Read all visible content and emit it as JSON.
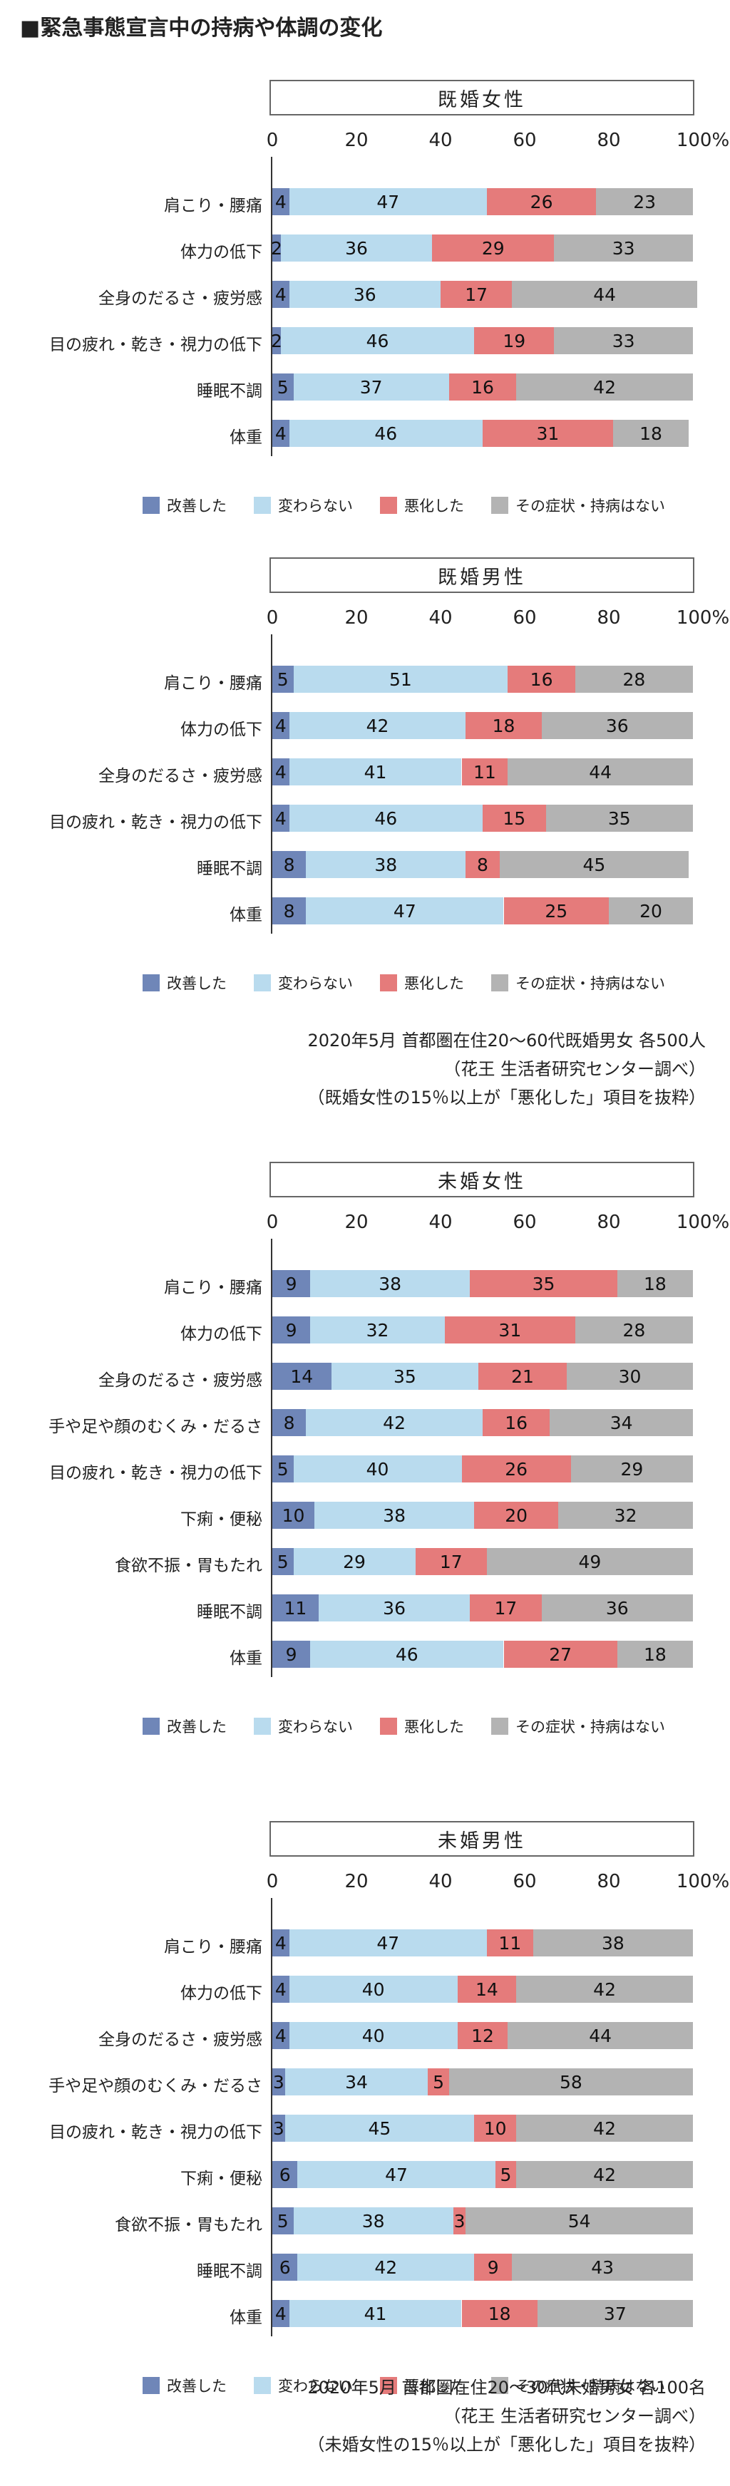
{
  "title": "■緊急事態宣言中の持病や体調の変化",
  "colors": {
    "improved": "#6f86b8",
    "unchanged": "#b9dbee",
    "worsened": "#e57b7b",
    "none": "#b3b3b3"
  },
  "legend": [
    "改善した",
    "変わらない",
    "悪化した",
    "その症状・持病はない"
  ],
  "notes": {
    "married": [
      "2020年5月 首都圏在住20〜60代既婚男女 各500人",
      "（花王 生活者研究センター調べ）",
      "（既婚女性の15％以上が「悪化した」項目を抜粋）"
    ],
    "single": [
      "2020年5月 首都圏在住20〜30代未婚男女 各100名",
      "（花王 生活者研究センター調べ）",
      "（未婚女性の15％以上が「悪化した」項目を抜粋）"
    ]
  },
  "chart_data": [
    {
      "type": "bar",
      "orientation": "horizontal",
      "stacked": true,
      "title": "既婚女性",
      "xticks": [
        "0",
        "20",
        "40",
        "60",
        "80",
        "100%"
      ],
      "xlim": [
        0,
        100
      ],
      "categories": [
        "肩こり・腰痛",
        "体力の低下",
        "全身のだるさ・疲労感",
        "目の疲れ・乾き・視力の低下",
        "睡眠不調",
        "体重"
      ],
      "series": [
        {
          "name": "改善した",
          "values": [
            4,
            2,
            4,
            2,
            5,
            4
          ]
        },
        {
          "name": "変わらない",
          "values": [
            47,
            36,
            36,
            46,
            37,
            46
          ]
        },
        {
          "name": "悪化した",
          "values": [
            26,
            29,
            17,
            19,
            16,
            31
          ]
        },
        {
          "name": "その症状・持病はない",
          "values": [
            23,
            33,
            44,
            33,
            42,
            18
          ]
        }
      ]
    },
    {
      "type": "bar",
      "orientation": "horizontal",
      "stacked": true,
      "title": "既婚男性",
      "xticks": [
        "0",
        "20",
        "40",
        "60",
        "80",
        "100%"
      ],
      "xlim": [
        0,
        100
      ],
      "categories": [
        "肩こり・腰痛",
        "体力の低下",
        "全身のだるさ・疲労感",
        "目の疲れ・乾き・視力の低下",
        "睡眠不調",
        "体重"
      ],
      "series": [
        {
          "name": "改善した",
          "values": [
            5,
            4,
            4,
            4,
            8,
            8
          ]
        },
        {
          "name": "変わらない",
          "values": [
            51,
            42,
            41,
            46,
            38,
            47
          ]
        },
        {
          "name": "悪化した",
          "values": [
            16,
            18,
            11,
            15,
            8,
            25
          ]
        },
        {
          "name": "その症状・持病はない",
          "values": [
            28,
            36,
            44,
            35,
            45,
            20
          ]
        }
      ]
    },
    {
      "type": "bar",
      "orientation": "horizontal",
      "stacked": true,
      "title": "未婚女性",
      "xticks": [
        "0",
        "20",
        "40",
        "60",
        "80",
        "100%"
      ],
      "xlim": [
        0,
        100
      ],
      "categories": [
        "肩こり・腰痛",
        "体力の低下",
        "全身のだるさ・疲労感",
        "手や足や顔のむくみ・だるさ",
        "目の疲れ・乾き・視力の低下",
        "下痢・便秘",
        "食欲不振・胃もたれ",
        "睡眠不調",
        "体重"
      ],
      "series": [
        {
          "name": "改善した",
          "values": [
            9,
            9,
            14,
            8,
            5,
            10,
            5,
            11,
            9
          ]
        },
        {
          "name": "変わらない",
          "values": [
            38,
            32,
            35,
            42,
            40,
            38,
            29,
            36,
            46
          ]
        },
        {
          "name": "悪化した",
          "values": [
            35,
            31,
            21,
            16,
            26,
            20,
            17,
            17,
            27
          ]
        },
        {
          "name": "その症状・持病はない",
          "values": [
            18,
            28,
            30,
            34,
            29,
            32,
            49,
            36,
            18
          ]
        }
      ]
    },
    {
      "type": "bar",
      "orientation": "horizontal",
      "stacked": true,
      "title": "未婚男性",
      "xticks": [
        "0",
        "20",
        "40",
        "60",
        "80",
        "100%"
      ],
      "xlim": [
        0,
        100
      ],
      "categories": [
        "肩こり・腰痛",
        "体力の低下",
        "全身のだるさ・疲労感",
        "手や足や顔のむくみ・だるさ",
        "目の疲れ・乾き・視力の低下",
        "下痢・便秘",
        "食欲不振・胃もたれ",
        "睡眠不調",
        "体重"
      ],
      "series": [
        {
          "name": "改善した",
          "values": [
            4,
            4,
            4,
            3,
            3,
            6,
            5,
            6,
            4
          ]
        },
        {
          "name": "変わらない",
          "values": [
            47,
            40,
            40,
            34,
            45,
            47,
            38,
            42,
            41
          ]
        },
        {
          "name": "悪化した",
          "values": [
            11,
            14,
            12,
            5,
            10,
            5,
            3,
            9,
            18
          ]
        },
        {
          "name": "その症状・持病はない",
          "values": [
            38,
            42,
            44,
            58,
            42,
            42,
            54,
            43,
            37
          ]
        }
      ]
    }
  ]
}
